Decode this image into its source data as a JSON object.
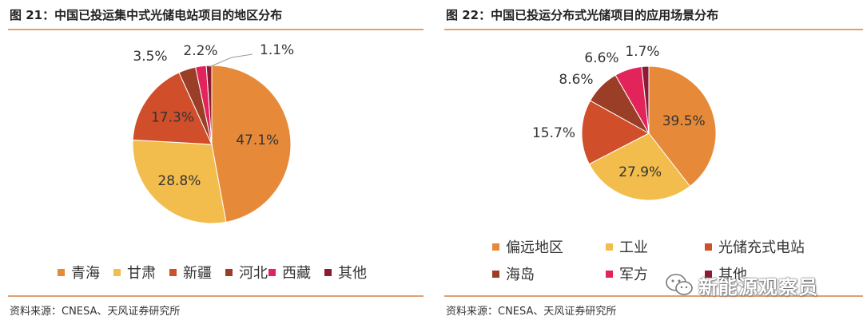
{
  "left": {
    "title": "图 21：中国已投运集中式光储电站项目的地区分布",
    "source": "资料来源：CNESA、天风证券研究所"
  },
  "right": {
    "title": "图 22：中国已投运分布式光储项目的应用场景分布",
    "source": "资料来源：CNESA、天风证券研究所"
  },
  "watermark": {
    "text": "新能源观察员",
    "icon": "wechat-icon"
  },
  "colors": {
    "orange": "#E68A3A",
    "yellow": "#F2BD4C",
    "red_orange": "#D04E2A",
    "brown": "#9A3E27",
    "pink": "#E3245A",
    "maroon": "#8C1B33"
  },
  "chart_data": [
    {
      "type": "pie",
      "title": "图 21：中国已投运集中式光储电站项目的地区分布",
      "categories": [
        "青海",
        "甘肃",
        "新疆",
        "河北",
        "西藏",
        "其他"
      ],
      "values": [
        47.1,
        28.8,
        17.3,
        3.5,
        2.2,
        1.1
      ],
      "labels": [
        "47.1%",
        "28.8%",
        "17.3%",
        "3.5%",
        "2.2%",
        "1.1%"
      ],
      "colors": [
        "#E68A3A",
        "#F2BD4C",
        "#D04E2A",
        "#9A3E27",
        "#E3245A",
        "#8C1B33"
      ],
      "legend": "bottom"
    },
    {
      "type": "pie",
      "title": "图 22：中国已投运分布式光储项目的应用场景分布",
      "categories": [
        "偏远地区",
        "工业",
        "光储充式电站",
        "海岛",
        "军方",
        "其他"
      ],
      "values": [
        39.5,
        27.9,
        15.7,
        8.6,
        6.6,
        1.7
      ],
      "labels": [
        "39.5%",
        "27.9%",
        "15.7%",
        "8.6%",
        "6.6%",
        "1.7%"
      ],
      "colors": [
        "#E68A3A",
        "#F2BD4C",
        "#D04E2A",
        "#9A3E27",
        "#E3245A",
        "#8C1B33"
      ],
      "legend": "bottom"
    }
  ]
}
